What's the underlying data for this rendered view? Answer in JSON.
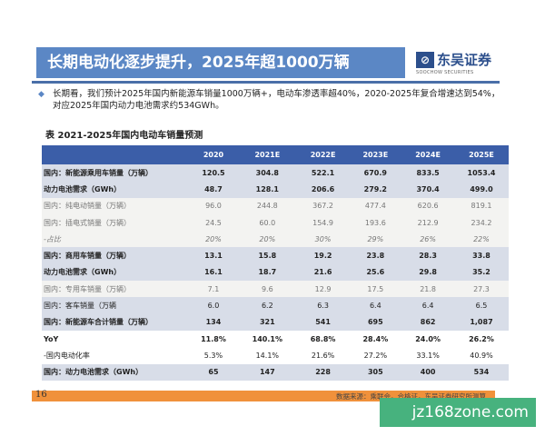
{
  "title": "长期电动化逐步提升，2025年超1000万辆",
  "logo": {
    "mark": "SCS",
    "name_cn": "东吴证券",
    "name_en": "SOOCHOW SECURITIES"
  },
  "bullet": "长期看，我们预计2025年国内新能源车销量1000万辆+，电动车渗透率超40%，2020-2025年复合增速达到54%，对应2025年国内动力电池需求约534GWh。",
  "table_caption": "表  2021-2025年国内电动车销量预测",
  "table": {
    "headers": [
      "",
      "2020",
      "2021E",
      "2022E",
      "2023E",
      "2024E",
      "2025E"
    ],
    "rows": [
      {
        "label": "国内：新能源乘用车销量（万辆）",
        "values": [
          "120.5",
          "304.8",
          "522.1",
          "670.9",
          "833.5",
          "1053.4"
        ]
      },
      {
        "label": "动力电池需求（GWh）",
        "values": [
          "48.7",
          "128.1",
          "206.6",
          "279.2",
          "370.4",
          "499.0"
        ]
      },
      {
        "label": "国内：纯电动销量（万辆）",
        "values": [
          "96.0",
          "244.8",
          "367.2",
          "477.4",
          "620.6",
          "819.1"
        ]
      },
      {
        "label": "国内：插电式销量（万辆）",
        "values": [
          "24.5",
          "60.0",
          "154.9",
          "193.6",
          "212.9",
          "234.2"
        ]
      },
      {
        "label": "-占比",
        "values": [
          "20%",
          "20%",
          "30%",
          "29%",
          "26%",
          "22%"
        ]
      },
      {
        "label": "国内：商用车销量（万辆）",
        "values": [
          "13.1",
          "15.8",
          "19.2",
          "23.8",
          "28.3",
          "33.8"
        ]
      },
      {
        "label": "动力电池需求（GWh）",
        "values": [
          "16.1",
          "18.7",
          "21.6",
          "25.6",
          "29.8",
          "35.2"
        ]
      },
      {
        "label": "国内：专用车销量（万辆）",
        "values": [
          "7.1",
          "9.6",
          "12.9",
          "17.5",
          "21.8",
          "27.3"
        ]
      },
      {
        "label": "国内：客车销量（万辆",
        "values": [
          "6.0",
          "6.2",
          "6.3",
          "6.4",
          "6.4",
          "6.5"
        ]
      },
      {
        "label": "国内：新能源车合计销量（万辆）",
        "values": [
          "134",
          "321",
          "541",
          "695",
          "862",
          "1,087"
        ]
      },
      {
        "label": "YoY",
        "values": [
          "11.8%",
          "140.1%",
          "68.8%",
          "28.4%",
          "24.0%",
          "26.2%"
        ]
      },
      {
        "label": "-国内电动化率",
        "values": [
          "5.3%",
          "14.1%",
          "21.6%",
          "27.2%",
          "33.1%",
          "40.9%"
        ]
      },
      {
        "label": "国内：动力电池需求（GWh）",
        "values": [
          "65",
          "147",
          "228",
          "305",
          "400",
          "534"
        ]
      }
    ]
  },
  "footer": {
    "page": "16",
    "source": "数据来源：乘联会，合格证，东吴证券研究所测算"
  },
  "watermark": "jz168zone.com",
  "colors": {
    "title_bar": "#5b87c5",
    "header": "#3b5ea8",
    "footer": "#f0913b",
    "watermark": "#47b27e"
  }
}
